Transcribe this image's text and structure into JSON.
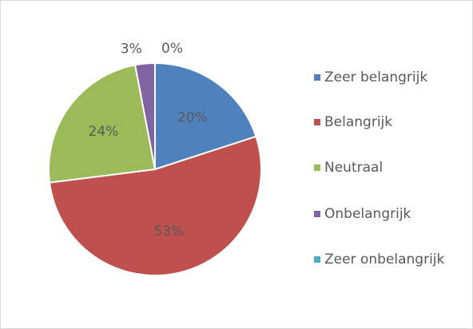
{
  "chart_data": {
    "type": "pie",
    "categories": [
      "Zeer belangrijk",
      "Belangrijk",
      "Neutraal",
      "Onbelangrijk",
      "Zeer onbelangrijk"
    ],
    "values": [
      20,
      53,
      24,
      3,
      0
    ],
    "value_labels": [
      "20%",
      "53%",
      "24%",
      "3%",
      "0%"
    ],
    "colors": [
      "#4f81bd",
      "#c0504d",
      "#9bbb59",
      "#8064a2",
      "#4bacc6"
    ],
    "legend": "right"
  }
}
